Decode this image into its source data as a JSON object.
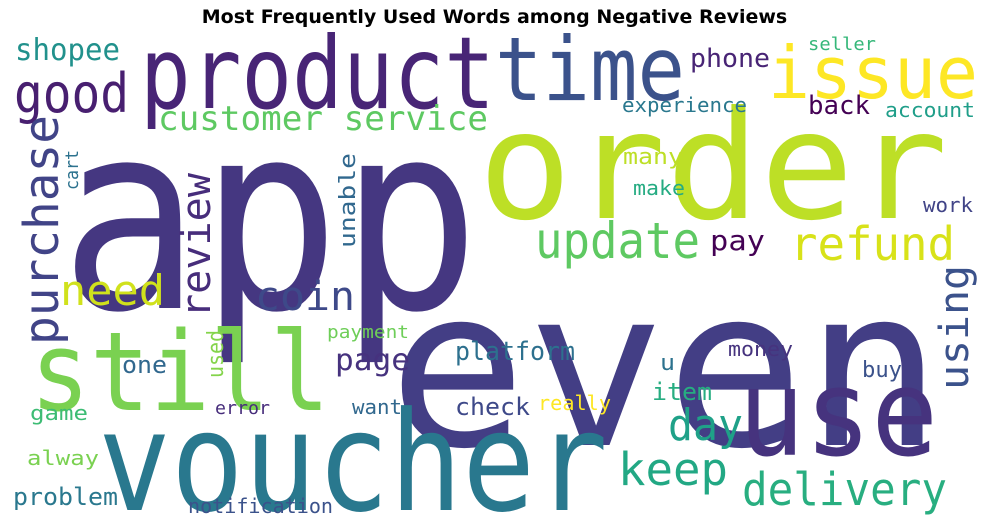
{
  "chart_data": {
    "type": "wordcloud",
    "title": "Most Frequently Used Words among Negative Reviews",
    "words": [
      {
        "text": "app",
        "color": "#453781"
      },
      {
        "text": "order",
        "color": "#bddf26"
      },
      {
        "text": "even",
        "color": "#433e85"
      },
      {
        "text": "use",
        "color": "#46337e"
      },
      {
        "text": "voucher",
        "color": "#29788e"
      },
      {
        "text": "still",
        "color": "#7ad151"
      },
      {
        "text": "product",
        "color": "#482576"
      },
      {
        "text": "time",
        "color": "#3b528b"
      },
      {
        "text": "issue",
        "color": "#fde725"
      },
      {
        "text": "good",
        "color": "#481f70"
      },
      {
        "text": "shopee",
        "color": "#21918c"
      },
      {
        "text": "customer service",
        "color": "#5ec962"
      },
      {
        "text": "purchase",
        "color": "#414487"
      },
      {
        "text": "cart",
        "color": "#2c728e"
      },
      {
        "text": "review",
        "color": "#472d7b"
      },
      {
        "text": "update",
        "color": "#5ec962"
      },
      {
        "text": "refund",
        "color": "#d8e219"
      },
      {
        "text": "need",
        "color": "#d0e11c"
      },
      {
        "text": "coin",
        "color": "#3e4989"
      },
      {
        "text": "using",
        "color": "#3b528b"
      },
      {
        "text": "delivery",
        "color": "#28ae80"
      },
      {
        "text": "keep",
        "color": "#22a884"
      },
      {
        "text": "day",
        "color": "#1fa188"
      },
      {
        "text": "pay",
        "color": "#440154"
      },
      {
        "text": "unable",
        "color": "#31688e"
      },
      {
        "text": "phone",
        "color": "#482475"
      },
      {
        "text": "seller",
        "color": "#35b779"
      },
      {
        "text": "back",
        "color": "#440154"
      },
      {
        "text": "account",
        "color": "#1f9e89"
      },
      {
        "text": "experience",
        "color": "#2a788e"
      },
      {
        "text": "many",
        "color": "#bddf26"
      },
      {
        "text": "make",
        "color": "#25ab82"
      },
      {
        "text": "work",
        "color": "#414487"
      },
      {
        "text": "page",
        "color": "#46327e"
      },
      {
        "text": "platform",
        "color": "#2d708e"
      },
      {
        "text": "payment",
        "color": "#6ece58"
      },
      {
        "text": "one",
        "color": "#31688e"
      },
      {
        "text": "used",
        "color": "#84d44b"
      },
      {
        "text": "game",
        "color": "#3dbc74"
      },
      {
        "text": "alway",
        "color": "#7ad151"
      },
      {
        "text": "problem",
        "color": "#2a788e"
      },
      {
        "text": "notification",
        "color": "#3b528b"
      },
      {
        "text": "error",
        "color": "#472d7b"
      },
      {
        "text": "want",
        "color": "#31688e"
      },
      {
        "text": "check",
        "color": "#3e4989"
      },
      {
        "text": "really",
        "color": "#fde725"
      },
      {
        "text": "item",
        "color": "#27ad81"
      },
      {
        "text": "money",
        "color": "#46337e"
      },
      {
        "text": "buy",
        "color": "#3b528b"
      },
      {
        "text": "u",
        "color": "#2c728e"
      }
    ]
  }
}
